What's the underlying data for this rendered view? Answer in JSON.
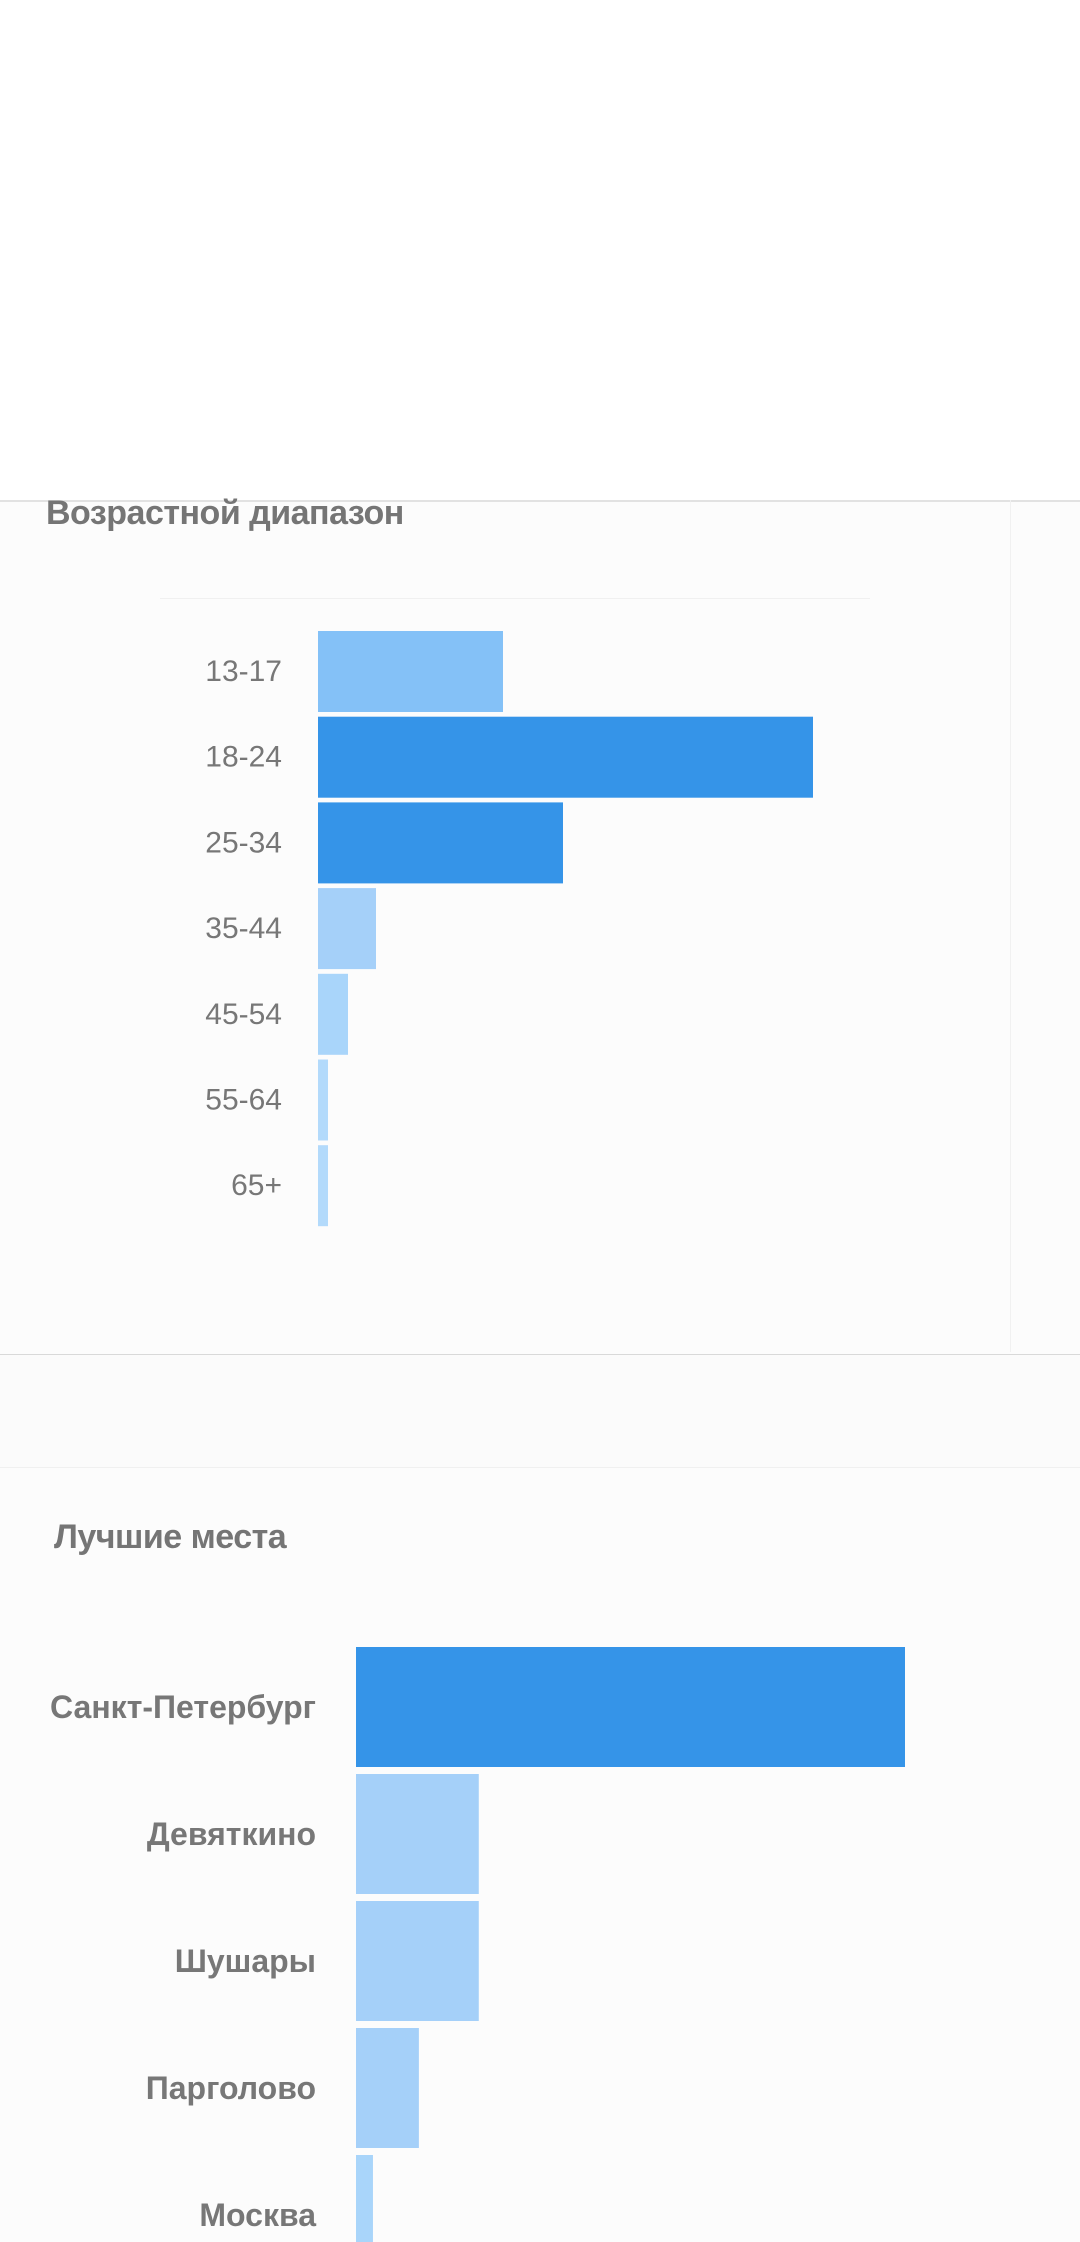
{
  "chart_data": [
    {
      "type": "bar",
      "orientation": "horizontal",
      "title": "Возрастной диапазон",
      "categories": [
        "13-17",
        "18-24",
        "25-34",
        "35-44",
        "45-54",
        "55-64",
        "65+"
      ],
      "values": [
        18.5,
        49.5,
        24.5,
        5.8,
        3.0,
        1.0,
        1.0
      ],
      "xlim": [
        0,
        55
      ],
      "grid": false,
      "legend": "none",
      "colors": [
        "#84c1f7",
        "#3594e8",
        "#3594e8",
        "#a5d0f9",
        "#a9d5fa",
        "#b3dafb",
        "#b3dafb"
      ]
    },
    {
      "type": "bar",
      "orientation": "horizontal",
      "title": "Лучшие места",
      "categories": [
        "Санкт-Петербург",
        "Девяткино",
        "Шушары",
        "Парголово",
        "Москва"
      ],
      "values": [
        55,
        12.3,
        12.3,
        6.3,
        1.7
      ],
      "xlim": [
        0,
        55
      ],
      "grid": false,
      "legend": "none",
      "colors": [
        "#3594e8",
        "#a5d0f9",
        "#a5d0f9",
        "#a5d0f9",
        "#a9d5fa"
      ]
    }
  ]
}
